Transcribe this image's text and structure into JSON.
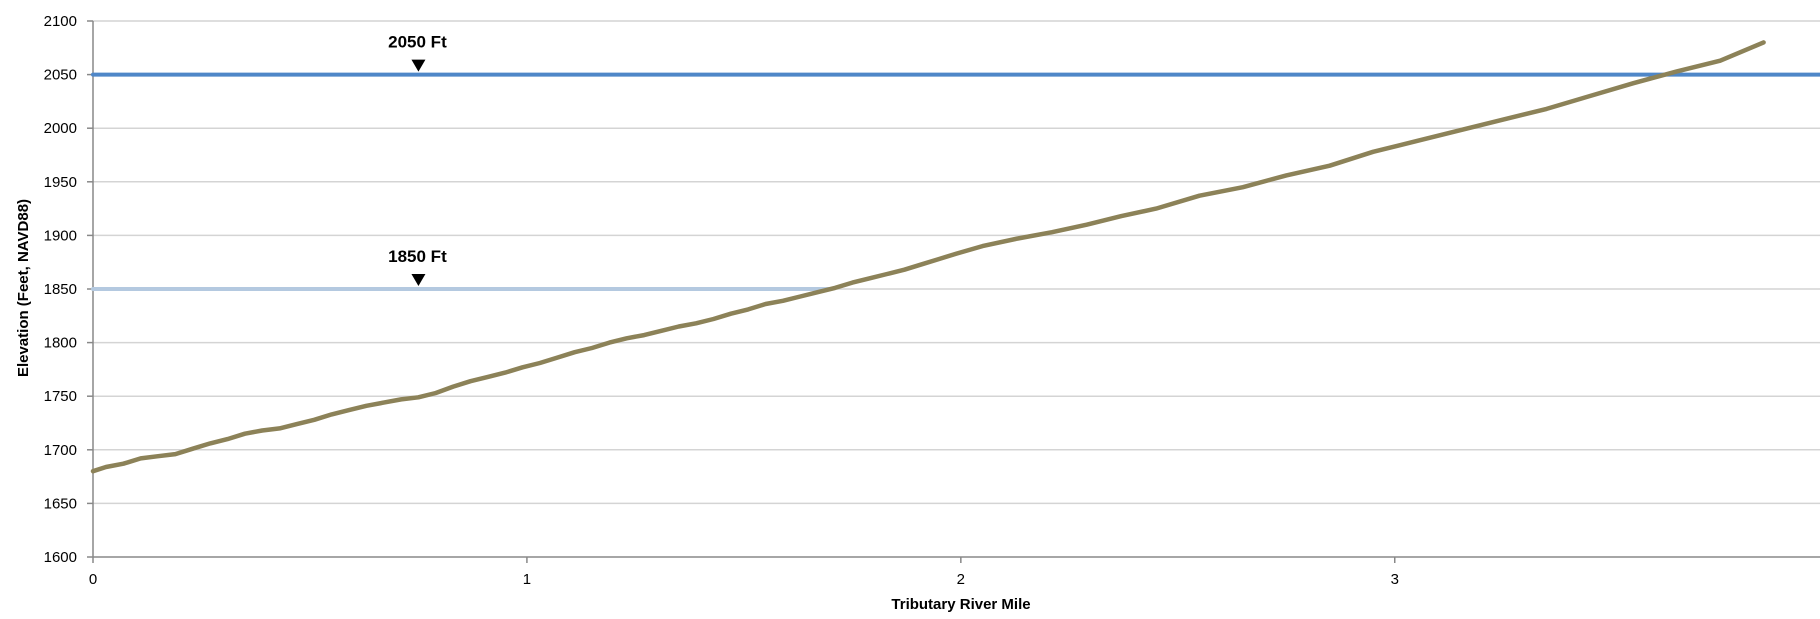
{
  "chart_data": {
    "type": "line",
    "xlabel": "Tributary River Mile",
    "ylabel": "Elevation (Feet, NAVD88)",
    "xlim": [
      0,
      3.98
    ],
    "ylim": [
      1600,
      2100
    ],
    "xticks": [
      0,
      1,
      2,
      3
    ],
    "yticks": [
      1600,
      1650,
      1700,
      1750,
      1800,
      1850,
      1900,
      1950,
      2000,
      2050,
      2100
    ],
    "grid": true,
    "legend": "none",
    "series": [
      {
        "color": "#8c8258",
        "x": [
          0,
          0.03,
          0.07,
          0.11,
          0.15,
          0.19,
          0.23,
          0.27,
          0.31,
          0.35,
          0.39,
          0.43,
          0.47,
          0.51,
          0.55,
          0.59,
          0.63,
          0.67,
          0.71,
          0.75,
          0.79,
          0.83,
          0.87,
          0.91,
          0.95,
          0.99,
          1.03,
          1.07,
          1.11,
          1.15,
          1.19,
          1.23,
          1.27,
          1.31,
          1.35,
          1.39,
          1.43,
          1.47,
          1.51,
          1.55,
          1.59,
          1.63,
          1.67,
          1.71,
          1.75,
          1.79,
          1.83,
          1.87,
          1.91,
          1.95,
          1.99,
          2.05,
          2.13,
          2.21,
          2.29,
          2.37,
          2.45,
          2.55,
          2.65,
          2.75,
          2.85,
          2.95,
          3.05,
          3.15,
          3.25,
          3.35,
          3.45,
          3.55,
          3.65,
          3.75,
          3.85
        ],
        "y": [
          1680,
          1684,
          1687,
          1692,
          1694,
          1696,
          1701,
          1706,
          1710,
          1715,
          1718,
          1720,
          1724,
          1728,
          1733,
          1737,
          1741,
          1744,
          1747,
          1749,
          1753,
          1759,
          1764,
          1768,
          1772,
          1777,
          1781,
          1786,
          1791,
          1795,
          1800,
          1804,
          1807,
          1811,
          1815,
          1818,
          1822,
          1827,
          1831,
          1836,
          1839,
          1843,
          1847,
          1851,
          1856,
          1860,
          1864,
          1868,
          1873,
          1878,
          1883,
          1890,
          1897,
          1903,
          1910,
          1918,
          1925,
          1937,
          1945,
          1956,
          1965,
          1978,
          1988,
          1998,
          2008,
          2018,
          2030,
          2042,
          2053,
          2063,
          2080
        ]
      },
      {
        "color": "#4f87c8",
        "x": [
          0,
          3.98
        ],
        "y": [
          2050,
          2050
        ]
      },
      {
        "color": "#b4c9e0",
        "x": [
          0,
          1.7
        ],
        "y": [
          1850,
          1850
        ]
      }
    ],
    "annotations": [
      {
        "text": "2050 Ft",
        "x": 0.75,
        "y": 2050
      },
      {
        "text": "1850 Ft",
        "x": 0.75,
        "y": 1850
      }
    ]
  }
}
